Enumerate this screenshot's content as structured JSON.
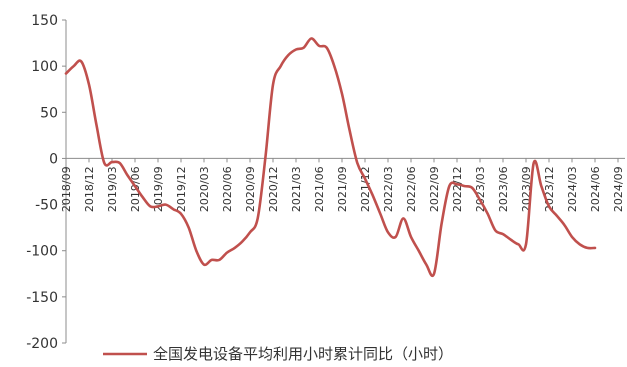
{
  "chart_data": {
    "type": "line",
    "title": "",
    "xlabel": "",
    "ylabel": "",
    "ylim": [
      -200,
      150
    ],
    "yticks": [
      150,
      100,
      50,
      0,
      -50,
      -100,
      -150,
      -200
    ],
    "x_tick_labels": [
      "2018/09",
      "2018/12",
      "2019/03",
      "2019/06",
      "2019/09",
      "2019/12",
      "2020/03",
      "2020/06",
      "2020/09",
      "2020/12",
      "2021/03",
      "2021/06",
      "2021/09",
      "2021/12",
      "2022/03",
      "2022/06",
      "2022/09",
      "2022/12",
      "2023/03",
      "2023/06",
      "2023/09",
      "2023/12",
      "2024/03",
      "2024/06",
      "2024/09"
    ],
    "grid": false,
    "legend_position": "bottom",
    "series": [
      {
        "name": "全国发电设备平均利用小时累计同比（小时）",
        "color": "#c0504d",
        "points": [
          [
            "2018/09",
            92
          ],
          [
            "2018/10",
            100
          ],
          [
            "2018/11",
            105
          ],
          [
            "2018/12",
            80
          ],
          [
            "2019/01",
            35
          ],
          [
            "2019/02",
            -5
          ],
          [
            "2019/03",
            -4
          ],
          [
            "2019/04",
            -5
          ],
          [
            "2019/05",
            -18
          ],
          [
            "2019/06",
            -30
          ],
          [
            "2019/07",
            -42
          ],
          [
            "2019/08",
            -52
          ],
          [
            "2019/09",
            -52
          ],
          [
            "2019/10",
            -50
          ],
          [
            "2019/11",
            -55
          ],
          [
            "2019/12",
            -60
          ],
          [
            "2020/01",
            -75
          ],
          [
            "2020/02",
            -100
          ],
          [
            "2020/03",
            -115
          ],
          [
            "2020/04",
            -110
          ],
          [
            "2020/05",
            -110
          ],
          [
            "2020/06",
            -102
          ],
          [
            "2020/07",
            -97
          ],
          [
            "2020/08",
            -90
          ],
          [
            "2020/09",
            -80
          ],
          [
            "2020/10",
            -65
          ],
          [
            "2020/11",
            0
          ],
          [
            "2020/12",
            80
          ],
          [
            "2021/01",
            100
          ],
          [
            "2021/02",
            112
          ],
          [
            "2021/03",
            118
          ],
          [
            "2021/04",
            120
          ],
          [
            "2021/05",
            130
          ],
          [
            "2021/06",
            122
          ],
          [
            "2021/07",
            120
          ],
          [
            "2021/08",
            100
          ],
          [
            "2021/09",
            70
          ],
          [
            "2021/10",
            30
          ],
          [
            "2021/11",
            -5
          ],
          [
            "2021/12",
            -22
          ],
          [
            "2022/01",
            -40
          ],
          [
            "2022/02",
            -60
          ],
          [
            "2022/03",
            -80
          ],
          [
            "2022/04",
            -85
          ],
          [
            "2022/05",
            -65
          ],
          [
            "2022/06",
            -85
          ],
          [
            "2022/07",
            -100
          ],
          [
            "2022/08",
            -115
          ],
          [
            "2022/09",
            -125
          ],
          [
            "2022/10",
            -70
          ],
          [
            "2022/11",
            -30
          ],
          [
            "2022/12",
            -28
          ],
          [
            "2023/01",
            -30
          ],
          [
            "2023/02",
            -32
          ],
          [
            "2023/03",
            -45
          ],
          [
            "2023/04",
            -60
          ],
          [
            "2023/05",
            -78
          ],
          [
            "2023/06",
            -82
          ],
          [
            "2023/07",
            -88
          ],
          [
            "2023/08",
            -93
          ],
          [
            "2023/09",
            -93
          ],
          [
            "2023/10",
            -5
          ],
          [
            "2023/11",
            -30
          ],
          [
            "2023/12",
            -52
          ],
          [
            "2024/01",
            -62
          ],
          [
            "2024/02",
            -72
          ],
          [
            "2024/03",
            -85
          ],
          [
            "2024/04",
            -93
          ],
          [
            "2024/05",
            -97
          ],
          [
            "2024/06",
            -97
          ]
        ]
      }
    ]
  }
}
